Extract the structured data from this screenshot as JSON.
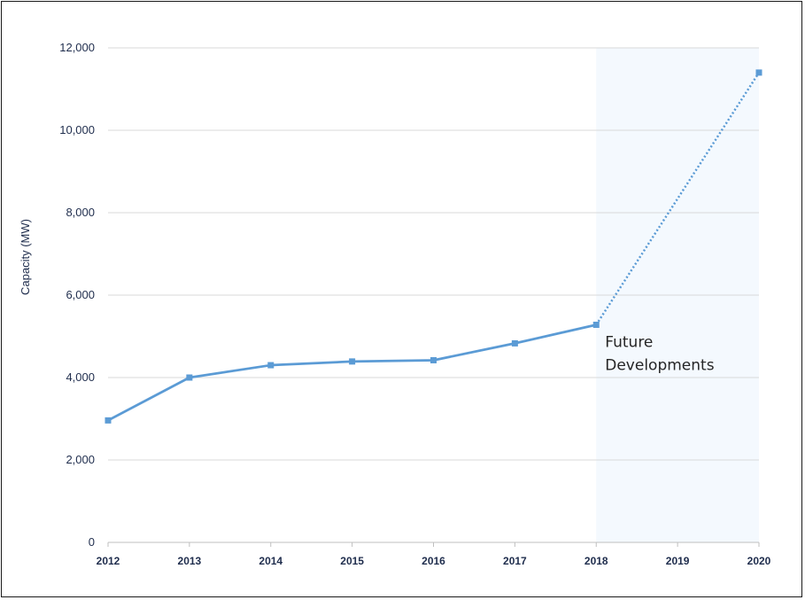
{
  "chart_data": {
    "type": "line",
    "title": "",
    "xlabel": "",
    "ylabel": "Capacity (MW)",
    "categories": [
      "2012",
      "2013",
      "2014",
      "2015",
      "2016",
      "2017",
      "2018",
      "2019",
      "2020"
    ],
    "ylim": [
      0,
      12000
    ],
    "y_ticks": [
      "0",
      "2,000",
      "4,000",
      "6,000",
      "8,000",
      "10,000",
      "12,000"
    ],
    "grid": "horizontal",
    "legend": "none",
    "series": [
      {
        "points": [
          {
            "x": "2012",
            "y": 2960
          },
          {
            "x": "2013",
            "y": 4000
          },
          {
            "x": "2014",
            "y": 4300
          },
          {
            "x": "2015",
            "y": 4390
          },
          {
            "x": "2016",
            "y": 4420
          },
          {
            "x": "2017",
            "y": 4830
          },
          {
            "x": "2018",
            "y": 5280
          }
        ],
        "style": "solid",
        "color": "#5b9bd5"
      },
      {
        "points": [
          {
            "x": "2018",
            "y": 5280
          },
          {
            "x": "2020",
            "y": 11400
          }
        ],
        "style": "dotted",
        "color": "#5b9bd5"
      }
    ],
    "shaded_region": {
      "x_start": "2018",
      "x_end": "2020",
      "color": "#f4f9fe"
    },
    "annotations": [
      {
        "lines": [
          "Future",
          "Developments"
        ],
        "x": "2018",
        "y": 5280
      }
    ]
  }
}
